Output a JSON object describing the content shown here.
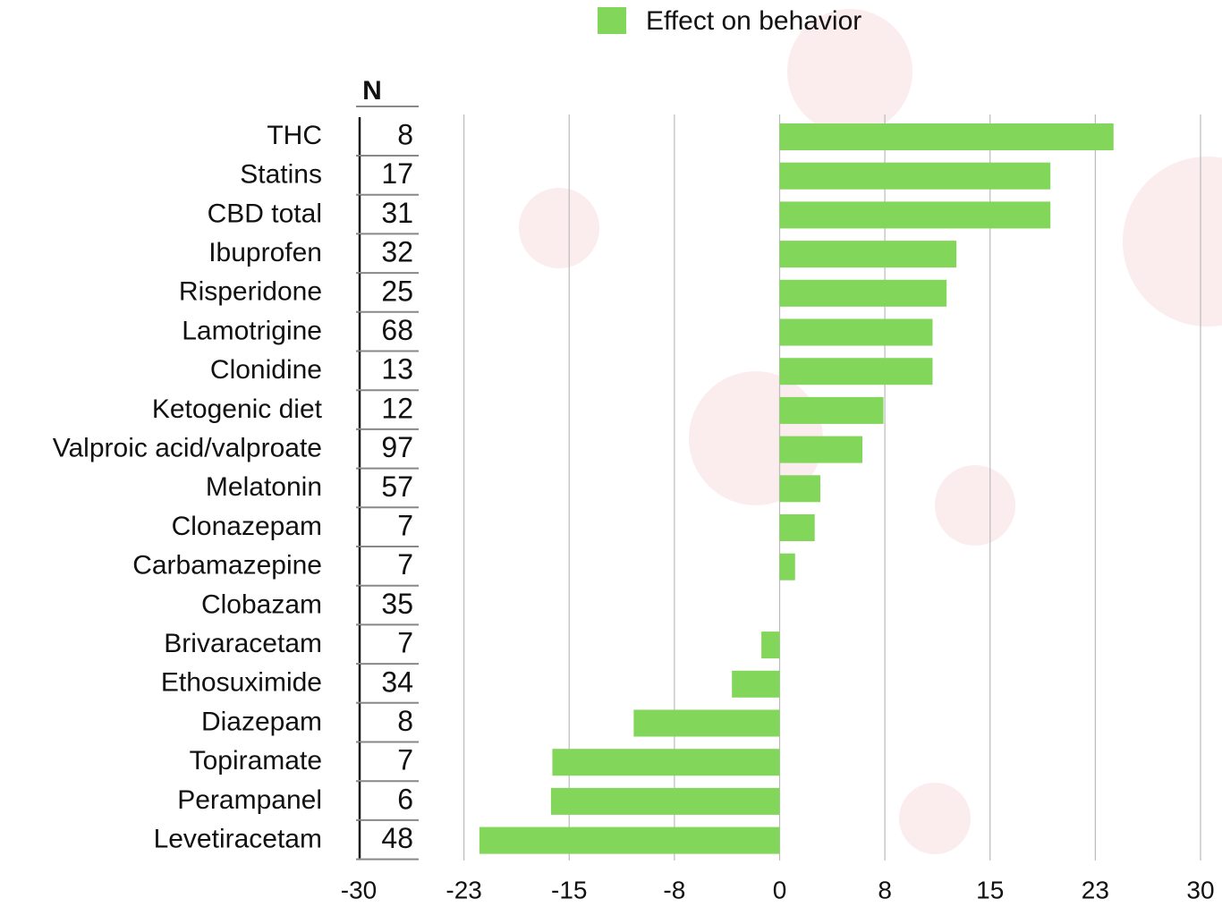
{
  "chart_data": {
    "type": "bar",
    "orientation": "horizontal",
    "categories": [
      "THC",
      "Statins",
      "CBD total",
      "Ibuprofen",
      "Risperidone",
      "Lamotrigine",
      "Clonidine",
      "Ketogenic diet",
      "Valproic acid/valproate",
      "Melatonin",
      "Clonazepam",
      "Carbamazepine",
      "Clobazam",
      "Brivaracetam",
      "Ethosuximide",
      "Diazepam",
      "Topiramate",
      "Perampanel",
      "Levetiracetam"
    ],
    "n_label": "N",
    "n": [
      8,
      17,
      31,
      32,
      25,
      68,
      13,
      12,
      97,
      57,
      7,
      7,
      35,
      7,
      34,
      8,
      7,
      6,
      48
    ],
    "series": [
      {
        "name": "Effect on behavior",
        "color": "#82d65a",
        "values": [
          23.8,
          19.3,
          19.3,
          12.6,
          11.9,
          10.9,
          10.9,
          7.4,
          5.9,
          2.9,
          2.5,
          1.1,
          0,
          -1.3,
          -3.4,
          -10.4,
          -16.2,
          -16.3,
          -21.4
        ]
      }
    ],
    "xlim": [
      -30,
      30
    ],
    "xticks": [
      -30,
      {
        "value": -22.5,
        "label": "-23"
      },
      -15,
      {
        "value": -7.5,
        "label": "-8"
      },
      0,
      {
        "value": 7.5,
        "label": "8"
      },
      15,
      {
        "value": 22.5,
        "label": "23"
      },
      30
    ],
    "grid": true,
    "legend": "top"
  }
}
